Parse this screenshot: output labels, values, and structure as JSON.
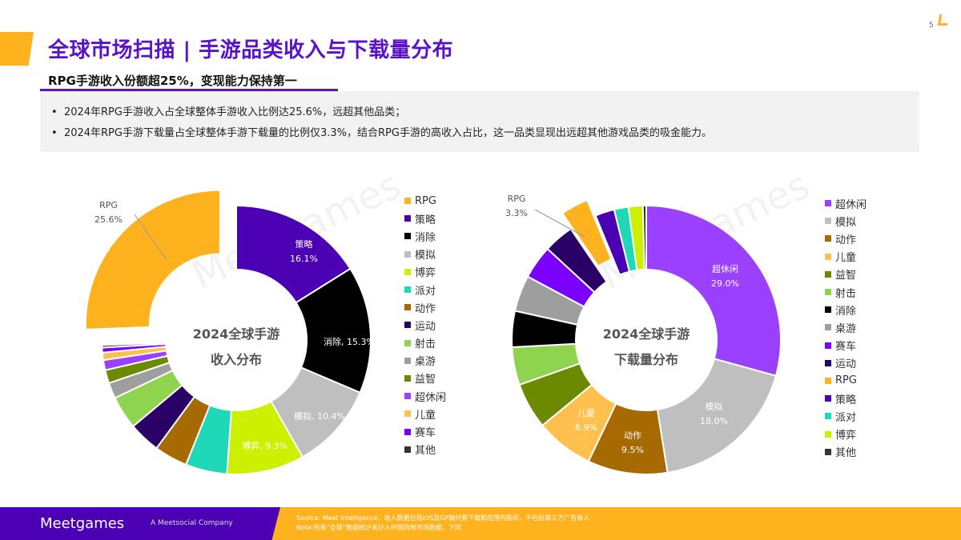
{
  "page_number": "5",
  "title": "全球市场扫描 | 手游品类收入与下载量分布",
  "subtitle": "RPG手游收入份额超25%，变现能力保持第一",
  "bullets": [
    "2024年RPG手游收入占全球整体手游收入比例达25.6%，远超其他品类；",
    "2024年RPG手游下载量占全球整体手游下载量的比例仅3.3%，结合RPG手游的高收入占比，这一品类显现出远超其他游戏品类的吸金能力。"
  ],
  "colors": {
    "RPG": "#FDB21E",
    "策略": "#4B00B4",
    "消除": "#000000",
    "模拟": "#BFBFBF",
    "博弈": "#CCF000",
    "派对": "#1ED8B8",
    "动作": "#A66A00",
    "运动": "#2B0066",
    "射击": "#8ED44E",
    "桌游": "#9E9E9E",
    "益智": "#6B8A00",
    "超休闲": "#9B40FF",
    "儿童": "#FFC04D",
    "赛车": "#7A00FF",
    "其他": "#333333"
  },
  "chart_data": [
    {
      "type": "pie",
      "title": "2024全球手游收入分布",
      "title_lines": [
        "2024全球手游",
        "收入分布"
      ],
      "exploded": "RPG",
      "labels": [
        "策略",
        "消除",
        "模拟",
        "博弈",
        "派对",
        "动作",
        "运动",
        "射击",
        "桌游",
        "益智",
        "超休闲",
        "儿童",
        "赛车",
        "其他",
        "RPG"
      ],
      "values": [
        16.1,
        15.3,
        10.4,
        9.3,
        5.0,
        4.0,
        3.8,
        4.0,
        1.9,
        1.6,
        1.2,
        0.9,
        0.6,
        0.3,
        25.6
      ],
      "data_labels": {
        "RPG": [
          "RPG",
          "25.6%"
        ],
        "策略": [
          "策略",
          "16.1%"
        ],
        "消除": "消除, 15.3%",
        "模拟": "模拟, 10.4%",
        "博弈": "博弈, 9.3%"
      },
      "legend": [
        "RPG",
        "策略",
        "消除",
        "模拟",
        "博弈",
        "派对",
        "动作",
        "运动",
        "射击",
        "桌游",
        "益智",
        "超休闲",
        "儿童",
        "赛车",
        "其他"
      ],
      "legend_position": "right"
    },
    {
      "type": "pie",
      "title": "2024全球手游下载量分布",
      "title_lines": [
        "2024全球手游",
        "下载量分布"
      ],
      "exploded": "RPG",
      "labels": [
        "超休闲",
        "模拟",
        "动作",
        "儿童",
        "益智",
        "射击",
        "消除",
        "桌游",
        "赛车",
        "运动",
        "RPG",
        "策略",
        "派对",
        "博弈",
        "其他"
      ],
      "values": [
        29.0,
        18.0,
        9.5,
        6.9,
        5.5,
        4.5,
        4.3,
        4.3,
        4.0,
        3.6,
        3.3,
        2.3,
        1.7,
        1.7,
        0.4
      ],
      "data_labels": {
        "超休闲": [
          "超休闲",
          "29.0%"
        ],
        "模拟": [
          "模拟",
          "18.0%"
        ],
        "动作": [
          "动作",
          "9.5%"
        ],
        "儿童": [
          "儿童",
          "6.9%"
        ],
        "RPG": [
          "RPG",
          "3.3%"
        ]
      },
      "legend": [
        "超休闲",
        "模拟",
        "动作",
        "儿童",
        "益智",
        "射击",
        "消除",
        "桌游",
        "赛车",
        "运动",
        "RPG",
        "策略",
        "派对",
        "博弈",
        "其他"
      ],
      "legend_position": "right"
    }
  ],
  "footer": {
    "logo": "Meetgames",
    "company": "A Meetsocial Company",
    "source": "Source: Meet Intelligence，收入数据包括iOS及GP端付费下载和应用内购买，不包括第三方广告收入",
    "note": "Note:所有“全球”数据统计未计入中国内地市场数据，下同"
  }
}
